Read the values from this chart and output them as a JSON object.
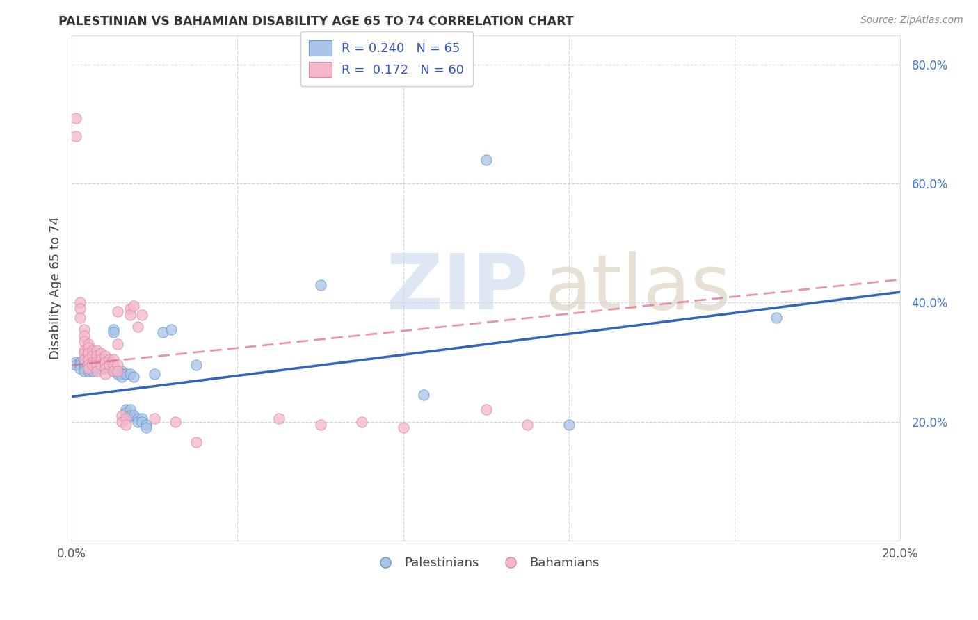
{
  "title": "PALESTINIAN VS BAHAMIAN DISABILITY AGE 65 TO 74 CORRELATION CHART",
  "source": "Source: ZipAtlas.com",
  "ylabel": "Disability Age 65 to 74",
  "xlim": [
    0.0,
    0.2
  ],
  "ylim": [
    0.0,
    0.85
  ],
  "palestinian_color": "#aac4e8",
  "palestinian_edge": "#6699cc",
  "bahamian_color": "#f5b8cb",
  "bahamian_edge": "#dd88aa",
  "trend_pal_color": "#3366bb",
  "trend_bah_color": "#dd6688",
  "watermark_zip_color": "#c8d8ee",
  "watermark_atlas_color": "#d8ccb8",
  "palestinian_points": [
    [
      0.001,
      0.3
    ],
    [
      0.001,
      0.295
    ],
    [
      0.002,
      0.3
    ],
    [
      0.002,
      0.295
    ],
    [
      0.002,
      0.29
    ],
    [
      0.003,
      0.305
    ],
    [
      0.003,
      0.3
    ],
    [
      0.003,
      0.295
    ],
    [
      0.003,
      0.29
    ],
    [
      0.003,
      0.285
    ],
    [
      0.004,
      0.31
    ],
    [
      0.004,
      0.3
    ],
    [
      0.004,
      0.295
    ],
    [
      0.004,
      0.29
    ],
    [
      0.004,
      0.285
    ],
    [
      0.005,
      0.3
    ],
    [
      0.005,
      0.295
    ],
    [
      0.005,
      0.29
    ],
    [
      0.005,
      0.285
    ],
    [
      0.006,
      0.305
    ],
    [
      0.006,
      0.3
    ],
    [
      0.006,
      0.295
    ],
    [
      0.006,
      0.29
    ],
    [
      0.007,
      0.305
    ],
    [
      0.007,
      0.3
    ],
    [
      0.007,
      0.295
    ],
    [
      0.007,
      0.29
    ],
    [
      0.008,
      0.305
    ],
    [
      0.008,
      0.295
    ],
    [
      0.008,
      0.29
    ],
    [
      0.009,
      0.3
    ],
    [
      0.009,
      0.295
    ],
    [
      0.009,
      0.29
    ],
    [
      0.01,
      0.355
    ],
    [
      0.01,
      0.35
    ],
    [
      0.01,
      0.29
    ],
    [
      0.01,
      0.285
    ],
    [
      0.011,
      0.285
    ],
    [
      0.011,
      0.28
    ],
    [
      0.012,
      0.285
    ],
    [
      0.012,
      0.28
    ],
    [
      0.012,
      0.275
    ],
    [
      0.013,
      0.28
    ],
    [
      0.013,
      0.22
    ],
    [
      0.013,
      0.215
    ],
    [
      0.014,
      0.28
    ],
    [
      0.014,
      0.22
    ],
    [
      0.014,
      0.21
    ],
    [
      0.015,
      0.275
    ],
    [
      0.015,
      0.21
    ],
    [
      0.016,
      0.205
    ],
    [
      0.016,
      0.2
    ],
    [
      0.017,
      0.205
    ],
    [
      0.017,
      0.2
    ],
    [
      0.018,
      0.195
    ],
    [
      0.018,
      0.19
    ],
    [
      0.02,
      0.28
    ],
    [
      0.022,
      0.35
    ],
    [
      0.024,
      0.355
    ],
    [
      0.03,
      0.295
    ],
    [
      0.06,
      0.43
    ],
    [
      0.1,
      0.64
    ],
    [
      0.12,
      0.195
    ],
    [
      0.17,
      0.375
    ],
    [
      0.085,
      0.245
    ]
  ],
  "bahamian_points": [
    [
      0.001,
      0.71
    ],
    [
      0.001,
      0.68
    ],
    [
      0.002,
      0.4
    ],
    [
      0.002,
      0.39
    ],
    [
      0.002,
      0.375
    ],
    [
      0.003,
      0.355
    ],
    [
      0.003,
      0.345
    ],
    [
      0.003,
      0.335
    ],
    [
      0.003,
      0.32
    ],
    [
      0.003,
      0.315
    ],
    [
      0.003,
      0.305
    ],
    [
      0.004,
      0.33
    ],
    [
      0.004,
      0.325
    ],
    [
      0.004,
      0.315
    ],
    [
      0.004,
      0.305
    ],
    [
      0.004,
      0.295
    ],
    [
      0.004,
      0.29
    ],
    [
      0.005,
      0.32
    ],
    [
      0.005,
      0.31
    ],
    [
      0.005,
      0.3
    ],
    [
      0.005,
      0.295
    ],
    [
      0.006,
      0.32
    ],
    [
      0.006,
      0.31
    ],
    [
      0.006,
      0.3
    ],
    [
      0.006,
      0.295
    ],
    [
      0.006,
      0.285
    ],
    [
      0.007,
      0.315
    ],
    [
      0.007,
      0.305
    ],
    [
      0.007,
      0.295
    ],
    [
      0.008,
      0.31
    ],
    [
      0.008,
      0.3
    ],
    [
      0.008,
      0.29
    ],
    [
      0.008,
      0.28
    ],
    [
      0.009,
      0.305
    ],
    [
      0.009,
      0.295
    ],
    [
      0.01,
      0.305
    ],
    [
      0.01,
      0.295
    ],
    [
      0.01,
      0.285
    ],
    [
      0.011,
      0.295
    ],
    [
      0.011,
      0.285
    ],
    [
      0.011,
      0.33
    ],
    [
      0.011,
      0.385
    ],
    [
      0.012,
      0.21
    ],
    [
      0.012,
      0.2
    ],
    [
      0.013,
      0.205
    ],
    [
      0.013,
      0.195
    ],
    [
      0.014,
      0.39
    ],
    [
      0.014,
      0.38
    ],
    [
      0.015,
      0.395
    ],
    [
      0.016,
      0.36
    ],
    [
      0.017,
      0.38
    ],
    [
      0.02,
      0.205
    ],
    [
      0.025,
      0.2
    ],
    [
      0.03,
      0.165
    ],
    [
      0.05,
      0.205
    ],
    [
      0.06,
      0.195
    ],
    [
      0.07,
      0.2
    ],
    [
      0.08,
      0.19
    ],
    [
      0.1,
      0.22
    ],
    [
      0.11,
      0.195
    ]
  ],
  "pal_trend_intercept": 0.242,
  "pal_trend_slope": 0.88,
  "bah_trend_intercept": 0.295,
  "bah_trend_slope": 0.72
}
